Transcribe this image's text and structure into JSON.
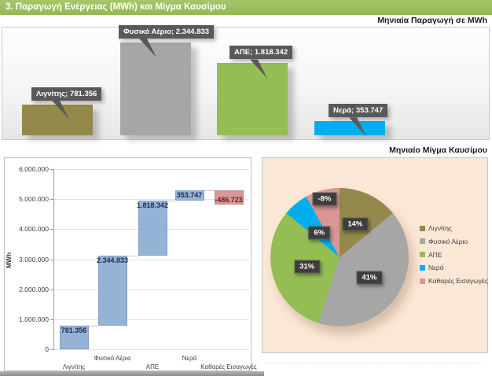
{
  "header": {
    "title": "3. Παραγωγή Ενέργειας (MWh) και Μίγμα Καυσίμου"
  },
  "colors": {
    "header_green": "#9bbd5d",
    "lignite": "#93894a",
    "natural_gas": "#a6a6a6",
    "res_green": "#94be53",
    "water_blue": "#00aeef",
    "imports_pink": "#d99694",
    "waterfall_blue": "#95b3d7",
    "callout_gray": "#595959",
    "pie_panel_bg": "#fbe7d5",
    "negative_label_red": "#632423"
  },
  "chart_data": [
    {
      "type": "bar",
      "title": "Μηνιαία Παραγωγή σε MWh",
      "categories": [
        "Λιγνίτης",
        "Φυσικό Αέριο",
        "ΑΠΕ",
        "Νερά"
      ],
      "slugs": [
        "lignite",
        "natural-gas",
        "res",
        "water"
      ],
      "values": [
        781356,
        2344833,
        1818342,
        353747
      ],
      "data_labels": [
        "Λιγνίτης; 781.356",
        "Φυσικό Αέριο; 2.344.833",
        "ΑΠΕ; 1.818.342",
        "Νερά; 353.747"
      ],
      "colors": [
        "#93894a",
        "#a6a6a6",
        "#94be53",
        "#00aeef"
      ],
      "ylim": [
        0,
        2500000
      ],
      "grid": false,
      "legend": "none"
    },
    {
      "type": "waterfall",
      "title": "",
      "ylabel": "MWh",
      "categories": [
        "Λιγνίτης",
        "Φυσικό Αέριο",
        "ΑΠΕ",
        "Νερά",
        "Καθαρές Εισαγωγές"
      ],
      "slugs": [
        "lignite",
        "natural-gas",
        "res",
        "water",
        "net-imports"
      ],
      "values": [
        781356,
        2344833,
        1818342,
        353747,
        -486723
      ],
      "data_labels": [
        "781.356",
        "2.344.833",
        "1.818.342",
        "353.747",
        "-486.723"
      ],
      "cumulative_ends": [
        781356,
        3126189,
        4944531,
        5298278,
        4811555
      ],
      "ylim": [
        0,
        6000000
      ],
      "ytick_labels": [
        "0",
        "1.000.000",
        "2.000.000",
        "3.000.000",
        "4.000.000",
        "5.000.000",
        "6.000.000"
      ],
      "bar_color": "#95b3d7",
      "negative_color": "#d99694",
      "grid": true,
      "legend": "none"
    },
    {
      "type": "pie",
      "title": "Μηνιαίο Μίγμα Καυσίμου",
      "labels": [
        "Λιγνίτης",
        "Φυσικό Αέριο",
        "ΑΠΕ",
        "Νερά",
        "Καθαρές Εισαγωγές"
      ],
      "slugs": [
        "lignite",
        "natural-gas",
        "res",
        "water",
        "net-imports"
      ],
      "values_pct": [
        14,
        41,
        31,
        6,
        8
      ],
      "data_labels": [
        "14%",
        "41%",
        "31%",
        "6%",
        "-8%"
      ],
      "colors": [
        "#93894a",
        "#a6a6a6",
        "#94be53",
        "#00aeef",
        "#d99694"
      ],
      "legend_position": "right",
      "start_angle_deg": 0,
      "direction": "clockwise"
    }
  ]
}
